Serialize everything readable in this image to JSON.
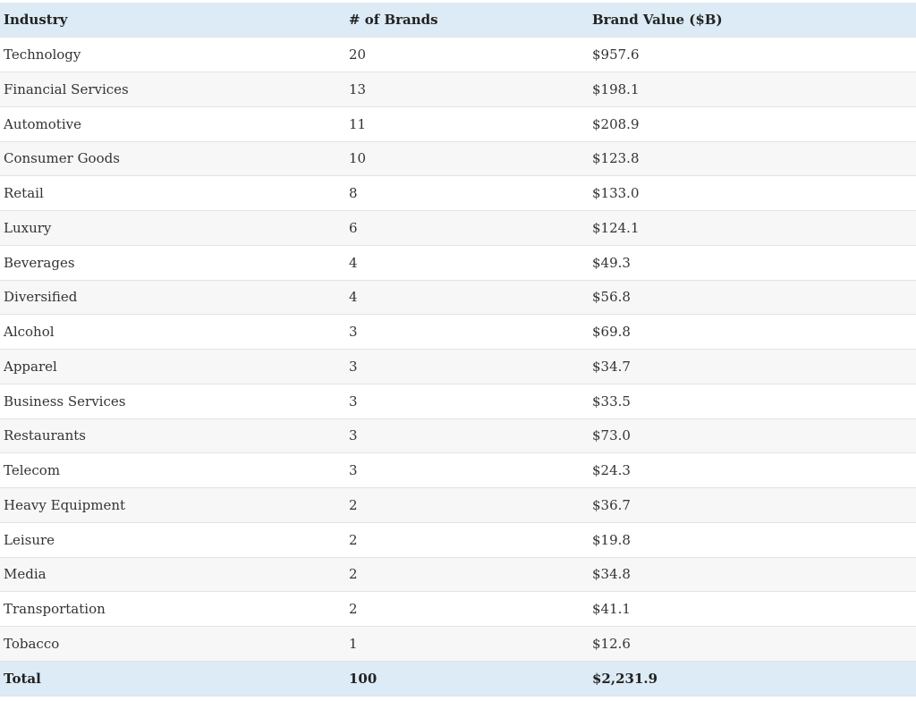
{
  "table": {
    "header": [
      "Industry",
      "# of Brands",
      "Brand Value ($B)"
    ],
    "rows": [
      [
        "Technology",
        "20",
        "$957.6"
      ],
      [
        "Financial Services",
        "13",
        "$198.1"
      ],
      [
        "Automotive",
        "11",
        "$208.9"
      ],
      [
        "Consumer Goods",
        "10",
        "$123.8"
      ],
      [
        "Retail",
        "8",
        "$133.0"
      ],
      [
        "Luxury",
        "6",
        "$124.1"
      ],
      [
        "Beverages",
        "4",
        "$49.3"
      ],
      [
        "Diversified",
        "4",
        "$56.8"
      ],
      [
        "Alcohol",
        "3",
        "$69.8"
      ],
      [
        "Apparel",
        "3",
        "$34.7"
      ],
      [
        "Business Services",
        "3",
        "$33.5"
      ],
      [
        "Restaurants",
        "3",
        "$73.0"
      ],
      [
        "Telecom",
        "3",
        "$24.3"
      ],
      [
        "Heavy Equipment",
        "2",
        "$36.7"
      ],
      [
        "Leisure",
        "2",
        "$19.8"
      ],
      [
        "Media",
        "2",
        "$34.8"
      ],
      [
        "Transportation",
        "2",
        "$41.1"
      ],
      [
        "Tobacco",
        "1",
        "$12.6"
      ]
    ],
    "total": [
      "Total",
      "100",
      "$2,231.9"
    ]
  }
}
